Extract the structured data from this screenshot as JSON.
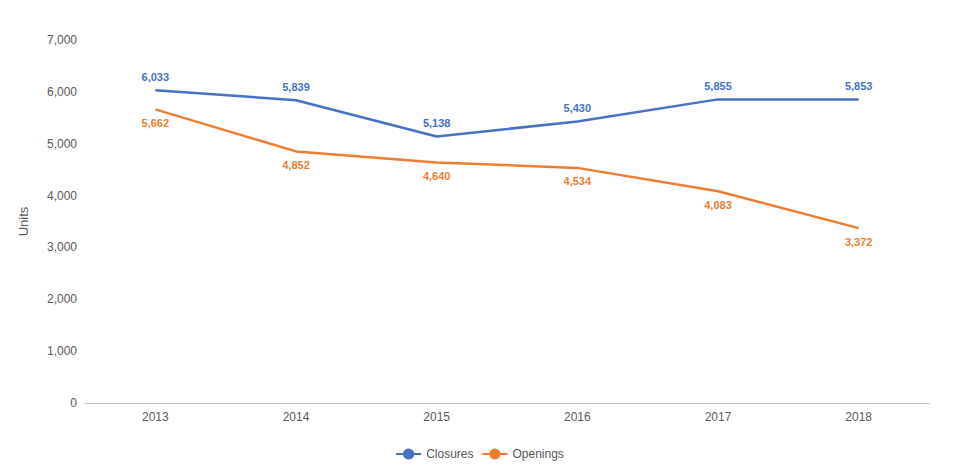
{
  "chart_data": {
    "type": "line",
    "categories": [
      "2013",
      "2014",
      "2015",
      "2016",
      "2017",
      "2018"
    ],
    "series": [
      {
        "name": "Closures",
        "color": "#4472C4",
        "values": [
          6033,
          5839,
          5138,
          5430,
          5855,
          5853
        ],
        "value_labels": [
          "6,033",
          "5,839",
          "5,138",
          "5,430",
          "5,855",
          "5,853"
        ]
      },
      {
        "name": "Openings",
        "color": "#ED7D31",
        "values": [
          5662,
          4852,
          4640,
          4534,
          4083,
          3372
        ],
        "value_labels": [
          "5,662",
          "4,852",
          "4,640",
          "4,534",
          "4,083",
          "3,372"
        ]
      }
    ],
    "y_label": "Units",
    "ylim": [
      0,
      7000
    ],
    "yticks": [
      0,
      {
        "value": 1000,
        "label": "1,000"
      },
      {
        "value": 2000,
        "label": "2,000"
      },
      {
        "value": 3000,
        "label": "3,000"
      },
      {
        "value": 4000,
        "label": "4,000"
      },
      {
        "value": 5000,
        "label": "5,000"
      },
      {
        "value": 6000,
        "label": "6,000"
      },
      {
        "value": 7000,
        "label": "7,000"
      }
    ],
    "grid": false,
    "legend": "bottom",
    "data_labels": true
  }
}
